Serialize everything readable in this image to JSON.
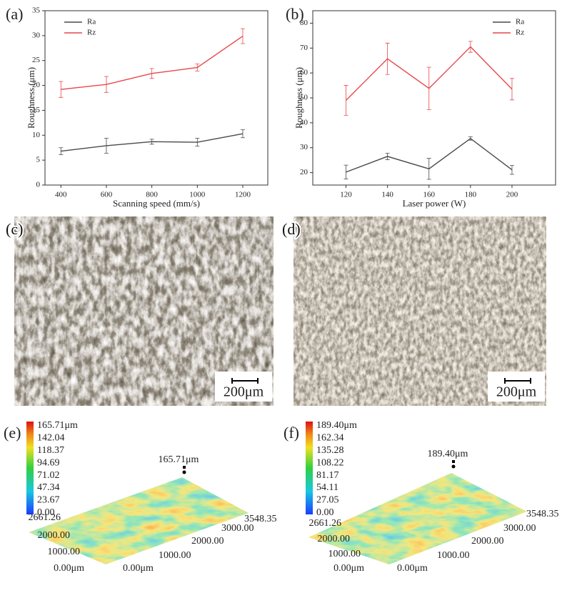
{
  "chart_data": [
    {
      "type": "line",
      "label": "(a)",
      "xlabel": "Scanning speed (mm/s)",
      "ylabel": "Roughness (μm)",
      "x": [
        400,
        600,
        800,
        1000,
        1200
      ],
      "xlim": [
        330,
        1310
      ],
      "xticks": [
        400,
        600,
        800,
        1000,
        1200
      ],
      "ylim": [
        0,
        35
      ],
      "yticks": [
        0,
        5,
        10,
        15,
        20,
        25,
        30,
        35
      ],
      "legend": "upper left",
      "series": [
        {
          "name": "Ra",
          "color": "#4a4a4a",
          "values": [
            6.8,
            7.9,
            8.7,
            8.6,
            10.3
          ],
          "errors": [
            0.7,
            1.5,
            0.5,
            0.8,
            0.8
          ]
        },
        {
          "name": "Rz",
          "color": "#e8474a",
          "values": [
            19.2,
            20.2,
            22.4,
            23.6,
            29.9
          ],
          "errors": [
            1.6,
            1.6,
            1.0,
            0.7,
            1.5
          ]
        }
      ]
    },
    {
      "type": "line",
      "label": "(b)",
      "xlabel": "Laser power (W)",
      "ylabel": "Roughness (μm)",
      "x": [
        120,
        140,
        160,
        180,
        200
      ],
      "xlim": [
        104,
        221
      ],
      "xticks": [
        120,
        140,
        160,
        180,
        200
      ],
      "ylim": [
        15,
        85
      ],
      "yticks": [
        20,
        30,
        40,
        50,
        60,
        70,
        80
      ],
      "legend": "upper right",
      "series": [
        {
          "name": "Ra",
          "color": "#4a4a4a",
          "values": [
            20.2,
            26.5,
            21.5,
            33.7,
            21.1
          ],
          "errors": [
            2.8,
            1.3,
            4.2,
            0.7,
            1.8
          ]
        },
        {
          "name": "Rz",
          "color": "#e8474a",
          "values": [
            49,
            65.7,
            53.8,
            70.5,
            53.5
          ],
          "errors": [
            6,
            6.3,
            8.5,
            2.2,
            4.3
          ]
        }
      ]
    }
  ],
  "micrographs": [
    {
      "label": "(c)",
      "scale_bar": "200μm"
    },
    {
      "label": "(d)",
      "scale_bar": "200μm"
    }
  ],
  "surfaces": [
    {
      "label": "(e)",
      "colorbar": [
        "165.71μm",
        "142.04",
        "118.37",
        "94.69",
        "71.02",
        "47.34",
        "23.67",
        "0.00"
      ],
      "peak": "165.71μm",
      "left_axis": [
        "2661.26",
        "2000.00",
        "1000.00",
        "0.00μm"
      ],
      "right_axis": [
        "0.00μm",
        "1000.00",
        "2000.00",
        "3000.00",
        "3548.35"
      ]
    },
    {
      "label": "(f)",
      "colorbar": [
        "189.40μm",
        "162.34",
        "135.28",
        "108.22",
        "81.17",
        "54.11",
        "27.05",
        "0.00"
      ],
      "peak": "189.40μm",
      "left_axis": [
        "2661.26",
        "2000.00",
        "1000.00",
        "0.00μm"
      ],
      "right_axis": [
        "0.00μm",
        "1000.00",
        "2000.00",
        "3000.00",
        "3548.35"
      ]
    }
  ]
}
